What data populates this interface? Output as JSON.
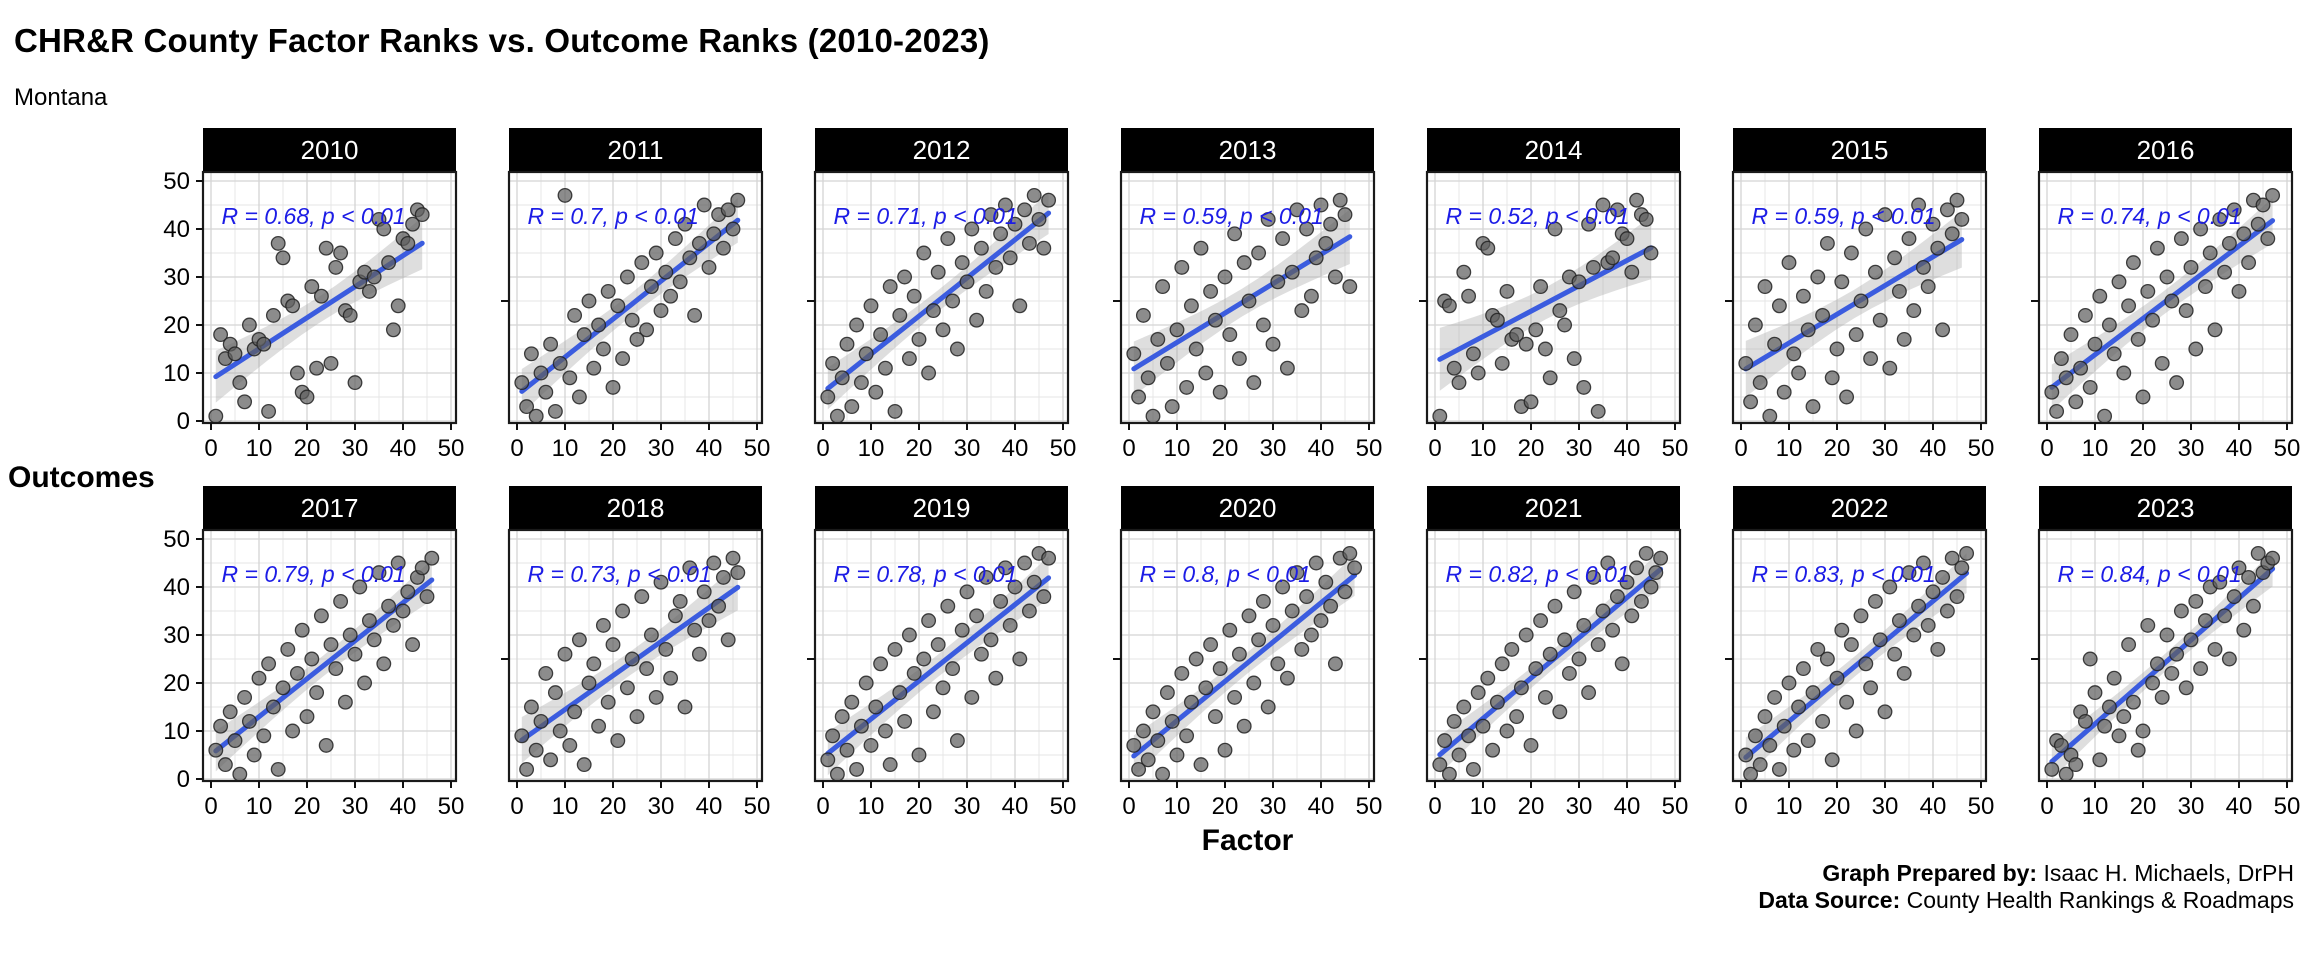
{
  "title": "CHR&R County Factor Ranks vs. Outcome Ranks (2010-2023)",
  "subtitle": "Montana",
  "axis": {
    "x_label": "Factor",
    "y_label": "Outcomes",
    "ticks": [
      0,
      10,
      20,
      30,
      40,
      50
    ],
    "minor_ticks": [
      5,
      15,
      25,
      35,
      45
    ],
    "unlabeled_y_tick": 25,
    "x_range": [
      0,
      50
    ],
    "y_range": [
      0,
      50
    ]
  },
  "credits": {
    "prepared_label": "Graph Prepared by:",
    "prepared_value": " Isaac H. Michaels, DrPH",
    "source_label": "Data Source:",
    "source_value": " County Health Rankings & Roadmaps"
  },
  "colors": {
    "strip_bg": "#000000",
    "strip_text": "#ffffff",
    "panel_bg": "#ffffff",
    "grid_major": "#d4d4d4",
    "grid_minor": "#e5e5e5",
    "panel_border": "#1a1a1a",
    "tick": "#111111",
    "point_fill": "#5f5f5f",
    "point_stroke": "#222222",
    "line": "#3b5cdf",
    "band": "#a8a8a8",
    "annotation": "#1c1ce6",
    "text": "#000000"
  },
  "chart_data": {
    "type": "scatter",
    "note": "x values are county factor ranks 1..N (implied by index+1), y values are outcome ranks; one facet per year",
    "x_range": [
      0,
      50
    ],
    "y_range": [
      0,
      50
    ],
    "facets": [
      {
        "year": "2010",
        "r": 0.68,
        "r_label": "R = 0.68, p < 0.01",
        "y": [
          1,
          18,
          13,
          16,
          14,
          8,
          4,
          20,
          15,
          17,
          16,
          2,
          22,
          37,
          34,
          25,
          24,
          10,
          6,
          5,
          28,
          11,
          26,
          36,
          12,
          32,
          35,
          23,
          22,
          8,
          29,
          31,
          27,
          30,
          42,
          40,
          33,
          19,
          24,
          38,
          37,
          41,
          44,
          43
        ]
      },
      {
        "year": "2011",
        "r": 0.7,
        "r_label": "R = 0.7, p < 0.01",
        "y": [
          8,
          3,
          14,
          1,
          10,
          6,
          16,
          2,
          12,
          47,
          9,
          22,
          5,
          18,
          25,
          11,
          20,
          15,
          27,
          7,
          24,
          13,
          30,
          21,
          17,
          33,
          19,
          28,
          35,
          23,
          31,
          26,
          38,
          29,
          41,
          34,
          22,
          37,
          45,
          32,
          39,
          43,
          36,
          44,
          40,
          46
        ]
      },
      {
        "year": "2012",
        "r": 0.71,
        "r_label": "R = 0.71, p < 0.01",
        "y": [
          5,
          12,
          1,
          9,
          16,
          3,
          20,
          8,
          14,
          24,
          6,
          18,
          11,
          28,
          2,
          22,
          30,
          13,
          26,
          17,
          35,
          10,
          23,
          31,
          19,
          38,
          25,
          15,
          33,
          29,
          40,
          21,
          36,
          27,
          43,
          32,
          39,
          45,
          34,
          41,
          24,
          44,
          37,
          47,
          42,
          36,
          46
        ]
      },
      {
        "year": "2013",
        "r": 0.59,
        "r_label": "R = 0.59, p < 0.01",
        "y": [
          14,
          5,
          22,
          9,
          1,
          17,
          28,
          12,
          3,
          19,
          32,
          7,
          24,
          15,
          36,
          10,
          27,
          21,
          6,
          30,
          18,
          39,
          13,
          33,
          25,
          8,
          35,
          20,
          42,
          16,
          29,
          38,
          11,
          31,
          44,
          23,
          40,
          26,
          34,
          45,
          37,
          41,
          30,
          46,
          43,
          28
        ]
      },
      {
        "year": "2014",
        "r": 0.52,
        "r_label": "R = 0.52, p < 0.01",
        "y": [
          1,
          25,
          24,
          11,
          8,
          31,
          26,
          14,
          10,
          37,
          36,
          22,
          21,
          12,
          27,
          17,
          18,
          3,
          16,
          4,
          19,
          28,
          15,
          9,
          40,
          23,
          20,
          30,
          13,
          29,
          7,
          41,
          32,
          2,
          45,
          33,
          34,
          44,
          39,
          38,
          31,
          46,
          43,
          42,
          35
        ]
      },
      {
        "year": "2015",
        "r": 0.59,
        "r_label": "R = 0.59, p < 0.01",
        "y": [
          12,
          4,
          20,
          8,
          28,
          1,
          16,
          24,
          6,
          33,
          14,
          10,
          26,
          19,
          3,
          30,
          22,
          37,
          9,
          15,
          29,
          5,
          35,
          18,
          25,
          40,
          13,
          31,
          21,
          43,
          11,
          34,
          27,
          17,
          38,
          23,
          45,
          32,
          28,
          41,
          36,
          19,
          44,
          39,
          46,
          42
        ]
      },
      {
        "year": "2016",
        "r": 0.74,
        "r_label": "R = 0.74, p < 0.01",
        "y": [
          6,
          2,
          13,
          9,
          18,
          4,
          11,
          22,
          7,
          16,
          26,
          1,
          20,
          14,
          29,
          10,
          24,
          33,
          17,
          5,
          27,
          21,
          36,
          12,
          30,
          25,
          8,
          38,
          23,
          32,
          15,
          40,
          28,
          35,
          19,
          42,
          31,
          37,
          44,
          27,
          39,
          33,
          46,
          41,
          45,
          38,
          47
        ]
      },
      {
        "year": "2017",
        "r": 0.79,
        "r_label": "R = 0.79, p < 0.01",
        "y": [
          6,
          11,
          3,
          14,
          8,
          1,
          17,
          12,
          5,
          21,
          9,
          24,
          15,
          2,
          19,
          27,
          10,
          22,
          31,
          13,
          25,
          18,
          34,
          7,
          28,
          23,
          37,
          16,
          30,
          26,
          40,
          20,
          33,
          29,
          43,
          24,
          36,
          32,
          45,
          35,
          39,
          28,
          42,
          44,
          38,
          46
        ]
      },
      {
        "year": "2018",
        "r": 0.73,
        "r_label": "R = 0.73, p < 0.01",
        "y": [
          9,
          2,
          15,
          6,
          12,
          22,
          4,
          18,
          10,
          26,
          7,
          14,
          29,
          3,
          20,
          24,
          11,
          32,
          16,
          28,
          8,
          35,
          19,
          25,
          13,
          38,
          23,
          30,
          17,
          41,
          27,
          21,
          34,
          37,
          15,
          44,
          31,
          26,
          39,
          33,
          45,
          36,
          42,
          29,
          46,
          43
        ]
      },
      {
        "year": "2019",
        "r": 0.78,
        "r_label": "R = 0.78, p < 0.01",
        "y": [
          4,
          9,
          1,
          13,
          6,
          16,
          2,
          11,
          20,
          7,
          15,
          24,
          10,
          3,
          27,
          18,
          12,
          30,
          22,
          5,
          25,
          33,
          14,
          28,
          19,
          36,
          23,
          8,
          31,
          39,
          17,
          34,
          26,
          42,
          29,
          21,
          37,
          44,
          32,
          40,
          25,
          45,
          35,
          41,
          47,
          38,
          46
        ]
      },
      {
        "year": "2020",
        "r": 0.8,
        "r_label": "R = 0.8, p < 0.01",
        "y": [
          7,
          2,
          10,
          4,
          14,
          8,
          1,
          18,
          12,
          5,
          22,
          9,
          16,
          25,
          3,
          19,
          28,
          13,
          23,
          6,
          31,
          17,
          26,
          11,
          34,
          20,
          29,
          37,
          15,
          32,
          24,
          40,
          21,
          35,
          43,
          27,
          38,
          30,
          45,
          33,
          41,
          36,
          24,
          46,
          39,
          47,
          44
        ]
      },
      {
        "year": "2021",
        "r": 0.82,
        "r_label": "R = 0.82, p < 0.01",
        "y": [
          3,
          8,
          1,
          12,
          5,
          15,
          9,
          2,
          18,
          11,
          21,
          6,
          16,
          24,
          10,
          27,
          13,
          19,
          30,
          7,
          23,
          33,
          17,
          26,
          36,
          14,
          29,
          22,
          39,
          25,
          32,
          18,
          42,
          28,
          35,
          45,
          31,
          38,
          24,
          41,
          34,
          44,
          37,
          47,
          40,
          43,
          46
        ]
      },
      {
        "year": "2022",
        "r": 0.83,
        "r_label": "R = 0.83, p < 0.01",
        "y": [
          5,
          1,
          9,
          3,
          13,
          7,
          17,
          2,
          11,
          20,
          6,
          15,
          23,
          8,
          18,
          27,
          12,
          25,
          4,
          21,
          31,
          16,
          28,
          10,
          34,
          24,
          19,
          37,
          29,
          14,
          40,
          26,
          33,
          22,
          43,
          30,
          36,
          45,
          32,
          39,
          27,
          42,
          35,
          46,
          38,
          44,
          47
        ]
      },
      {
        "year": "2023",
        "r": 0.84,
        "r_label": "R = 0.84, p < 0.01",
        "y": [
          2,
          8,
          7,
          1,
          5,
          3,
          14,
          12,
          25,
          18,
          4,
          11,
          15,
          21,
          9,
          13,
          28,
          16,
          6,
          10,
          32,
          20,
          24,
          17,
          30,
          22,
          26,
          35,
          19,
          29,
          37,
          23,
          33,
          40,
          27,
          41,
          34,
          25,
          38,
          44,
          31,
          42,
          36,
          47,
          43,
          45,
          46
        ]
      }
    ]
  }
}
